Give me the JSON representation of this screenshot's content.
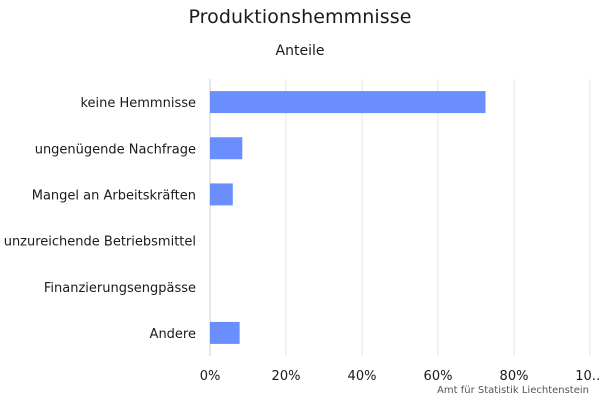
{
  "chart_data": {
    "type": "bar",
    "orientation": "horizontal",
    "title": "Produktionshemmnisse",
    "subtitle": "Anteile",
    "categories": [
      "keine Hemmnisse",
      "ungenügende Nachfrage",
      "Mangel an Arbeitskräften",
      "unzureichende Betriebsmittel",
      "Finanzierungsengpässe",
      "Andere"
    ],
    "values": [
      72.5,
      8.5,
      6.0,
      0,
      0,
      7.8
    ],
    "xlim": [
      0,
      100
    ],
    "x_ticks": [
      "0%",
      "20%",
      "40%",
      "60%",
      "80%",
      "10…"
    ],
    "grid": true,
    "legend": "none",
    "bar_color": "#6b8eff",
    "credit": "Amt für Statistik Liechtenstein"
  }
}
